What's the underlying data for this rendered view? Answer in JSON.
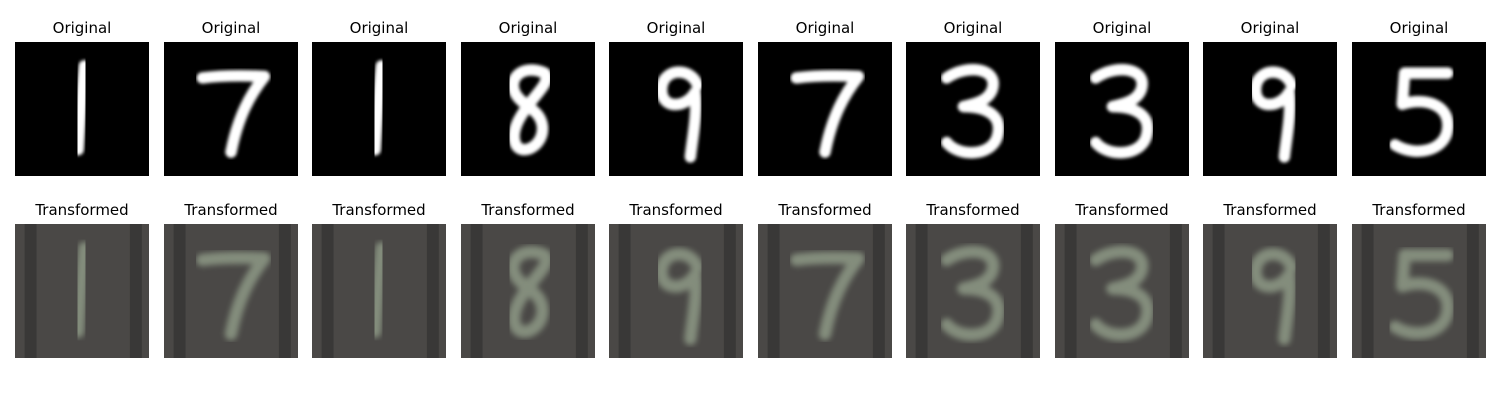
{
  "rows": [
    {
      "kind": "original",
      "title": "Original",
      "digits": [
        "1",
        "7",
        "1",
        "8",
        "9",
        "7",
        "3",
        "3",
        "9",
        "5"
      ],
      "background": "#000000",
      "stroke": "#ffffff"
    },
    {
      "kind": "transformed",
      "title": "Transformed",
      "digits": [
        "1",
        "7",
        "1",
        "8",
        "9",
        "7",
        "3",
        "3",
        "9",
        "5"
      ],
      "background": "#4a4846",
      "stroke": "#8e9a86"
    }
  ]
}
